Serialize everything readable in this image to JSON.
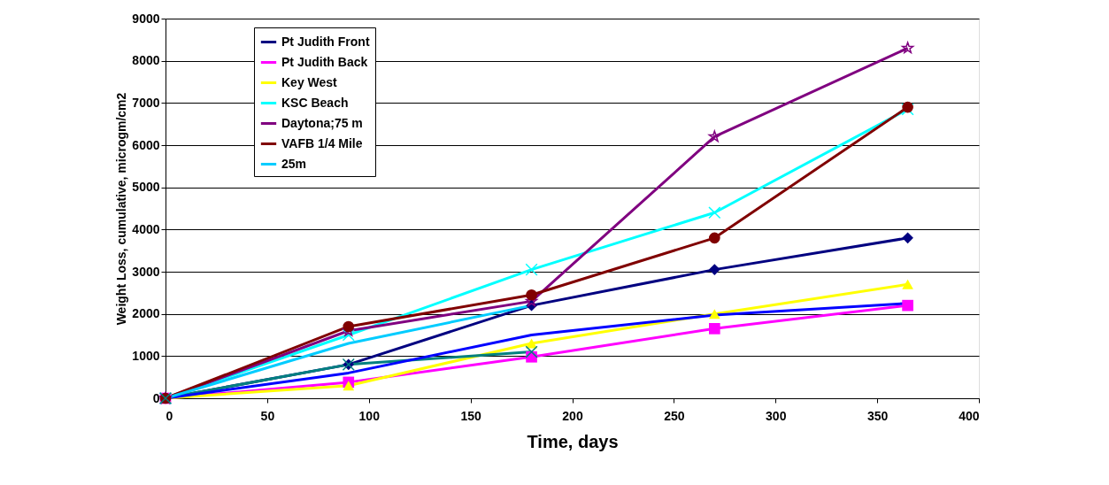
{
  "chart_data": {
    "type": "line",
    "xlabel": "Time, days",
    "ylabel": "Weight Loss, cumulative, microgm/cm2",
    "x": [
      0,
      90,
      180,
      270,
      365
    ],
    "xlim": [
      0,
      400
    ],
    "xticks": [
      0,
      50,
      100,
      150,
      200,
      250,
      300,
      350,
      400
    ],
    "ylim": [
      0,
      9000
    ],
    "yticks": [
      0,
      1000,
      2000,
      3000,
      4000,
      5000,
      6000,
      7000,
      8000,
      9000
    ],
    "grid": "y",
    "legend": "top left",
    "line_style": "solid",
    "series": [
      {
        "name": "Pt Judith Front",
        "color": "#000080",
        "marker": "diamond",
        "values": [
          0,
          800,
          2200,
          3050,
          3800
        ]
      },
      {
        "name": "Pt Judith Back",
        "color": "#ff00ff",
        "marker": "square",
        "values": [
          0,
          380,
          980,
          1650,
          2200
        ]
      },
      {
        "name": "Key West",
        "color": "#ffff00",
        "marker": "triangle",
        "values": [
          0,
          300,
          1300,
          2000,
          2700
        ]
      },
      {
        "name": "KSC Beach",
        "color": "#00ffff",
        "marker": "cross",
        "values": [
          0,
          1500,
          3050,
          4400,
          6850
        ]
      },
      {
        "name": "Daytona;75 m",
        "color": "#800080",
        "marker": "star",
        "values": [
          0,
          1600,
          2300,
          6200,
          8300
        ]
      },
      {
        "name": "VAFB 1/4 Mile",
        "color": "#800000",
        "marker": "circle",
        "values": [
          0,
          1700,
          2450,
          3800,
          6900
        ]
      },
      {
        "color": "#008080",
        "marker": "cross",
        "values": [
          0,
          800,
          1100,
          null,
          null
        ]
      },
      {
        "color": "#0000ff",
        "marker": "none",
        "values": [
          0,
          600,
          1500,
          1970,
          2250
        ]
      },
      {
        "name": "25m",
        "color": "#00ccff",
        "marker": "none",
        "values": [
          0,
          1300,
          2200,
          null,
          null
        ]
      }
    ]
  }
}
